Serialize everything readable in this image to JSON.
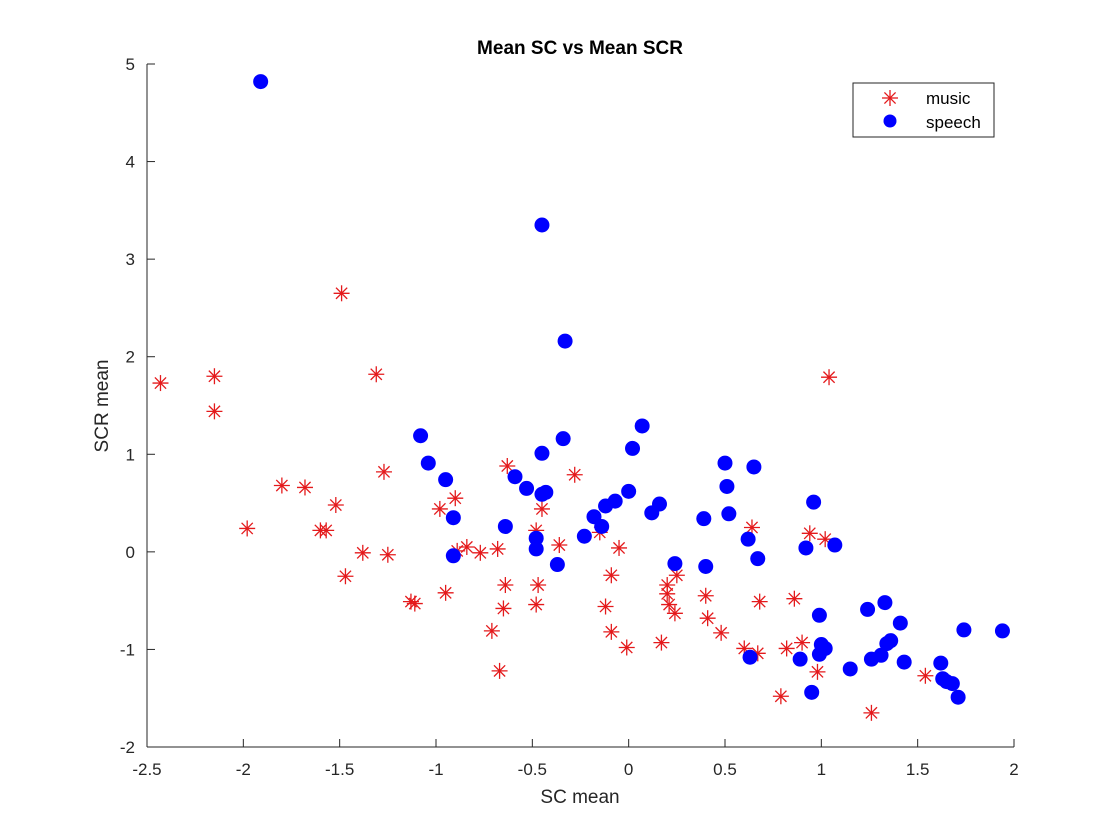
{
  "chart_data": {
    "type": "scatter",
    "title": "Mean SC vs Mean SCR",
    "xlabel": "SC mean",
    "ylabel": "SCR mean",
    "xlim": [
      -2.5,
      2
    ],
    "ylim": [
      -2,
      5
    ],
    "xticks": [
      "-2.5",
      "-2",
      "-1.5",
      "-1",
      "-0.5",
      "0",
      "0.5",
      "1",
      "1.5",
      "2"
    ],
    "yticks": [
      "-2",
      "-1",
      "0",
      "1",
      "2",
      "3",
      "4",
      "5"
    ],
    "grid": false,
    "legend_position": "top-right",
    "series": [
      {
        "name": "music",
        "marker": "asterisk",
        "color": "#e41a1c",
        "points": [
          [
            -2.43,
            1.73
          ],
          [
            -2.15,
            1.8
          ],
          [
            -2.15,
            1.44
          ],
          [
            -1.98,
            0.24
          ],
          [
            -1.8,
            0.68
          ],
          [
            -1.68,
            0.66
          ],
          [
            -1.6,
            0.22
          ],
          [
            -1.57,
            0.22
          ],
          [
            -1.52,
            0.48
          ],
          [
            -1.49,
            2.65
          ],
          [
            -1.47,
            -0.25
          ],
          [
            -1.38,
            -0.01
          ],
          [
            -1.31,
            1.82
          ],
          [
            -1.27,
            0.82
          ],
          [
            -1.25,
            -0.03
          ],
          [
            -1.13,
            -0.51
          ],
          [
            -1.11,
            -0.53
          ],
          [
            -0.98,
            0.44
          ],
          [
            -0.95,
            -0.42
          ],
          [
            -0.9,
            0.55
          ],
          [
            -0.89,
            0.01
          ],
          [
            -0.84,
            0.05
          ],
          [
            -0.77,
            -0.01
          ],
          [
            -0.71,
            -0.81
          ],
          [
            -0.68,
            0.03
          ],
          [
            -0.67,
            -1.22
          ],
          [
            -0.65,
            -0.58
          ],
          [
            -0.64,
            -0.34
          ],
          [
            -0.63,
            0.88
          ],
          [
            -0.48,
            0.22
          ],
          [
            -0.48,
            -0.54
          ],
          [
            -0.47,
            -0.34
          ],
          [
            -0.45,
            0.44
          ],
          [
            -0.36,
            0.07
          ],
          [
            -0.28,
            0.79
          ],
          [
            -0.15,
            0.2
          ],
          [
            -0.12,
            -0.56
          ],
          [
            -0.09,
            -0.82
          ],
          [
            -0.09,
            -0.24
          ],
          [
            -0.05,
            0.04
          ],
          [
            -0.01,
            -0.98
          ],
          [
            0.17,
            -0.93
          ],
          [
            0.2,
            -0.34
          ],
          [
            0.2,
            -0.43
          ],
          [
            0.21,
            -0.54
          ],
          [
            0.24,
            -0.63
          ],
          [
            0.25,
            -0.24
          ],
          [
            0.4,
            -0.45
          ],
          [
            0.41,
            -0.68
          ],
          [
            0.48,
            -0.83
          ],
          [
            0.6,
            -0.99
          ],
          [
            0.64,
            0.25
          ],
          [
            0.67,
            -1.04
          ],
          [
            0.68,
            -0.51
          ],
          [
            0.79,
            -1.48
          ],
          [
            0.82,
            -0.99
          ],
          [
            0.86,
            -0.48
          ],
          [
            0.9,
            -0.93
          ],
          [
            0.94,
            0.19
          ],
          [
            0.98,
            -1.23
          ],
          [
            1.02,
            0.13
          ],
          [
            1.04,
            1.79
          ],
          [
            1.26,
            -1.65
          ],
          [
            1.54,
            -1.27
          ]
        ]
      },
      {
        "name": "speech",
        "marker": "circle",
        "color": "#0000ff",
        "points": [
          [
            -1.91,
            4.82
          ],
          [
            -1.08,
            1.19
          ],
          [
            -1.04,
            0.91
          ],
          [
            -0.95,
            0.74
          ],
          [
            -0.91,
            0.35
          ],
          [
            -0.91,
            -0.04
          ],
          [
            -0.64,
            0.26
          ],
          [
            -0.59,
            0.77
          ],
          [
            -0.53,
            0.65
          ],
          [
            -0.48,
            0.14
          ],
          [
            -0.48,
            0.03
          ],
          [
            -0.45,
            3.35
          ],
          [
            -0.45,
            0.59
          ],
          [
            -0.45,
            1.01
          ],
          [
            -0.43,
            0.61
          ],
          [
            -0.37,
            -0.13
          ],
          [
            -0.34,
            1.16
          ],
          [
            -0.33,
            2.16
          ],
          [
            -0.23,
            0.16
          ],
          [
            -0.18,
            0.36
          ],
          [
            -0.14,
            0.26
          ],
          [
            -0.12,
            0.47
          ],
          [
            -0.07,
            0.52
          ],
          [
            0.0,
            0.62
          ],
          [
            0.02,
            1.06
          ],
          [
            0.07,
            1.29
          ],
          [
            0.12,
            0.4
          ],
          [
            0.16,
            0.49
          ],
          [
            0.24,
            -0.12
          ],
          [
            0.39,
            0.34
          ],
          [
            0.4,
            -0.15
          ],
          [
            0.5,
            0.91
          ],
          [
            0.51,
            0.67
          ],
          [
            0.52,
            0.39
          ],
          [
            0.62,
            0.13
          ],
          [
            0.63,
            -1.08
          ],
          [
            0.65,
            0.87
          ],
          [
            0.67,
            -0.07
          ],
          [
            0.89,
            -1.1
          ],
          [
            0.92,
            0.04
          ],
          [
            0.95,
            -1.44
          ],
          [
            0.96,
            0.51
          ],
          [
            0.99,
            -1.05
          ],
          [
            0.99,
            -0.65
          ],
          [
            1.0,
            -0.95
          ],
          [
            1.02,
            -0.99
          ],
          [
            1.07,
            0.07
          ],
          [
            1.15,
            -1.2
          ],
          [
            1.24,
            -0.59
          ],
          [
            1.26,
            -1.1
          ],
          [
            1.31,
            -1.06
          ],
          [
            1.33,
            -0.52
          ],
          [
            1.34,
            -0.94
          ],
          [
            1.36,
            -0.91
          ],
          [
            1.41,
            -0.73
          ],
          [
            1.43,
            -1.13
          ],
          [
            1.62,
            -1.14
          ],
          [
            1.63,
            -1.3
          ],
          [
            1.65,
            -1.33
          ],
          [
            1.68,
            -1.35
          ],
          [
            1.71,
            -1.49
          ],
          [
            1.74,
            -0.8
          ],
          [
            1.94,
            -0.81
          ]
        ]
      }
    ]
  }
}
